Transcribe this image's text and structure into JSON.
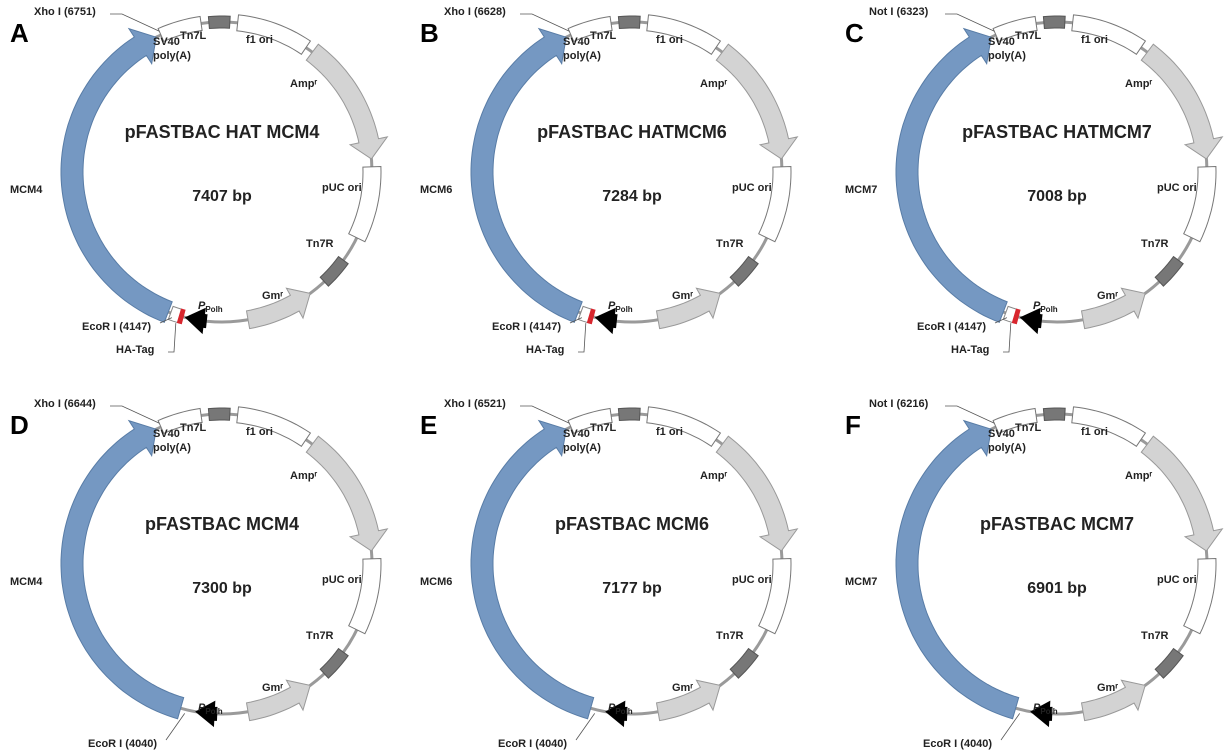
{
  "panels": [
    {
      "letter": "A",
      "title": "pFASTBAC HAT MCM4",
      "size": "7407 bp",
      "insert": "MCM4",
      "site_top": "Xho I (6751)",
      "site_bottom": "EcoR I (4147)",
      "tag": "HA-Tag",
      "features": {
        "sv40": [
          "SV40",
          "poly(A)"
        ],
        "tn7l": "Tn7L",
        "f1": "f1 ori",
        "amp": "Ampʳ",
        "puc": "pUC ori",
        "tn7r": "Tn7R",
        "gm": "Gmʳ",
        "promoter": "P",
        "promoter_sub": "Polh"
      }
    },
    {
      "letter": "B",
      "title": "pFASTBAC HATMCM6",
      "size": "7284 bp",
      "insert": "MCM6",
      "site_top": "Xho I (6628)",
      "site_bottom": "EcoR I (4147)",
      "tag": "HA-Tag",
      "features": {
        "sv40": [
          "SV40",
          "poly(A)"
        ],
        "tn7l": "Tn7L",
        "f1": "f1 ori",
        "amp": "Ampʳ",
        "puc": "pUC ori",
        "tn7r": "Tn7R",
        "gm": "Gmʳ",
        "promoter": "P",
        "promoter_sub": "Polh"
      }
    },
    {
      "letter": "C",
      "title": "pFASTBAC HATMCM7",
      "size": "7008 bp",
      "insert": "MCM7",
      "site_top": "Not I (6323)",
      "site_bottom": "EcoR I (4147)",
      "tag": "HA-Tag",
      "features": {
        "sv40": [
          "SV40",
          "poly(A)"
        ],
        "tn7l": "Tn7L",
        "f1": "f1 ori",
        "amp": "Ampʳ",
        "puc": "pUC ori",
        "tn7r": "Tn7R",
        "gm": "Gmʳ",
        "promoter": "P",
        "promoter_sub": "Polh"
      }
    },
    {
      "letter": "D",
      "title": "pFASTBAC MCM4",
      "size": "7300 bp",
      "insert": "MCM4",
      "site_top": "Xho I (6644)",
      "site_bottom": "EcoR I (4040)",
      "features": {
        "sv40": [
          "SV40",
          "poly(A)"
        ],
        "tn7l": "Tn7L",
        "f1": "f1 ori",
        "amp": "Ampʳ",
        "puc": "pUC ori",
        "tn7r": "Tn7R",
        "gm": "Gmʳ",
        "promoter": "P",
        "promoter_sub": "Polh"
      }
    },
    {
      "letter": "E",
      "title": "pFASTBAC MCM6",
      "size": "7177 bp",
      "insert": "MCM6",
      "site_top": "Xho I (6521)",
      "site_bottom": "EcoR I (4040)",
      "features": {
        "sv40": [
          "SV40",
          "poly(A)"
        ],
        "tn7l": "Tn7L",
        "f1": "f1 ori",
        "amp": "Ampʳ",
        "puc": "pUC ori",
        "tn7r": "Tn7R",
        "gm": "Gmʳ",
        "promoter": "P",
        "promoter_sub": "Polh"
      }
    },
    {
      "letter": "F",
      "title": "pFASTBAC MCM7",
      "size": "6901 bp",
      "insert": "MCM7",
      "site_top": "Not I (6216)",
      "site_bottom": "EcoR I (4040)",
      "features": {
        "sv40": [
          "SV40",
          "poly(A)"
        ],
        "tn7l": "Tn7L",
        "f1": "f1 ori",
        "amp": "Ampʳ",
        "puc": "pUC ori",
        "tn7r": "Tn7R",
        "gm": "Gmʳ",
        "promoter": "P",
        "promoter_sub": "Polh"
      }
    }
  ]
}
